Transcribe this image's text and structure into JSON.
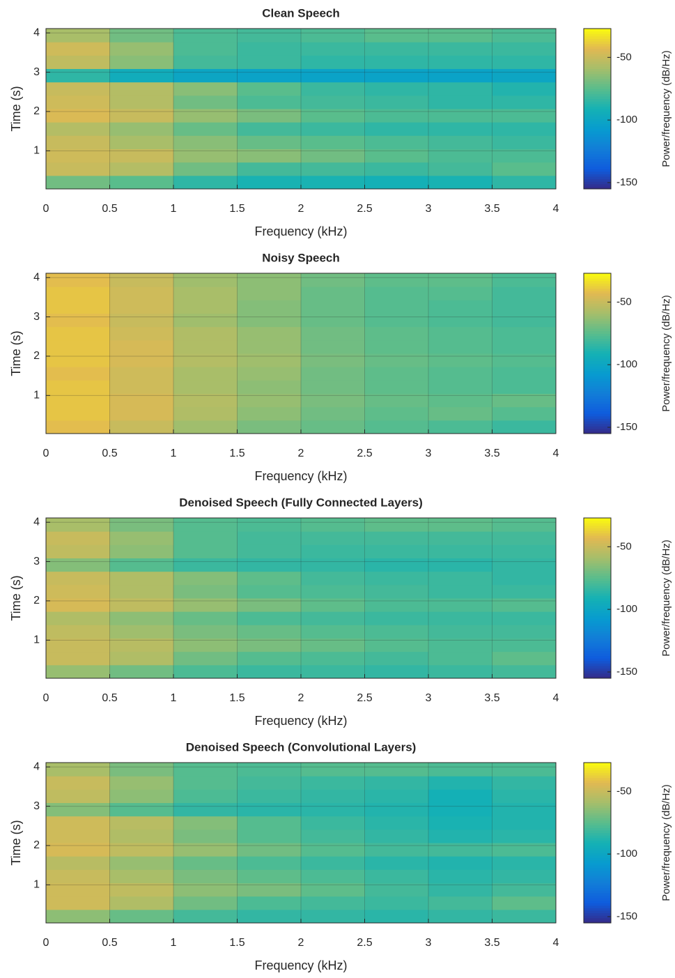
{
  "chart_data": [
    {
      "type": "heatmap",
      "title": "Clean Speech",
      "xlabel": "Frequency (kHz)",
      "ylabel": "Time (s)",
      "colorbar_label": "Power/frequency (dB/Hz)",
      "x": [
        0.25,
        0.75,
        1.25,
        1.75,
        2.25,
        2.75,
        3.25,
        3.75
      ],
      "y": [
        0.2,
        0.54,
        0.88,
        1.22,
        1.56,
        1.9,
        2.24,
        2.58,
        2.92,
        3.26,
        3.6,
        3.94
      ],
      "values": [
        [
          -70,
          -75,
          -85,
          -90,
          -90,
          -92,
          -90,
          -85
        ],
        [
          -50,
          -55,
          -70,
          -80,
          -80,
          -82,
          -80,
          -75
        ],
        [
          -48,
          -50,
          -62,
          -65,
          -70,
          -75,
          -78,
          -78
        ],
        [
          -50,
          -58,
          -65,
          -72,
          -75,
          -78,
          -80,
          -82
        ],
        [
          -55,
          -62,
          -72,
          -80,
          -82,
          -85,
          -85,
          -85
        ],
        [
          -45,
          -50,
          -62,
          -68,
          -75,
          -78,
          -78,
          -78
        ],
        [
          -48,
          -55,
          -70,
          -78,
          -80,
          -82,
          -85,
          -85
        ],
        [
          -50,
          -55,
          -65,
          -75,
          -82,
          -85,
          -85,
          -88
        ],
        [
          -85,
          -95,
          -100,
          -102,
          -102,
          -102,
          -102,
          -100
        ],
        [
          -52,
          -65,
          -80,
          -82,
          -85,
          -85,
          -85,
          -85
        ],
        [
          -48,
          -62,
          -78,
          -82,
          -82,
          -82,
          -82,
          -82
        ],
        [
          -58,
          -70,
          -78,
          -80,
          -78,
          -75,
          -75,
          -78
        ]
      ],
      "xlim": [
        0,
        4
      ],
      "ylim": [
        0.03,
        4.11
      ],
      "xticks": [
        0,
        0.5,
        1,
        1.5,
        2,
        2.5,
        3,
        3.5,
        4
      ],
      "yticks": [
        1,
        2,
        3,
        4
      ],
      "clim": [
        -155,
        -27
      ],
      "cticks": [
        -50,
        -100,
        -150
      ],
      "colormap": "parula",
      "grid": true
    },
    {
      "type": "heatmap",
      "title": "Noisy Speech",
      "xlabel": "Frequency (kHz)",
      "ylabel": "Time (s)",
      "colorbar_label": "Power/frequency (dB/Hz)",
      "x": [
        0.25,
        0.75,
        1.25,
        1.75,
        2.25,
        2.75,
        3.25,
        3.75
      ],
      "y": [
        0.2,
        0.54,
        0.88,
        1.22,
        1.56,
        1.9,
        2.24,
        2.58,
        2.92,
        3.26,
        3.6,
        3.94
      ],
      "values": [
        [
          -42,
          -50,
          -60,
          -68,
          -72,
          -76,
          -78,
          -82
        ],
        [
          -40,
          -46,
          -56,
          -64,
          -70,
          -74,
          -72,
          -76
        ],
        [
          -40,
          -46,
          -55,
          -62,
          -68,
          -72,
          -74,
          -72
        ],
        [
          -40,
          -48,
          -58,
          -64,
          -70,
          -74,
          -76,
          -78
        ],
        [
          -42,
          -48,
          -58,
          -62,
          -70,
          -74,
          -76,
          -78
        ],
        [
          -40,
          -46,
          -55,
          -60,
          -68,
          -72,
          -74,
          -76
        ],
        [
          -40,
          -46,
          -56,
          -62,
          -70,
          -74,
          -76,
          -78
        ],
        [
          -40,
          -48,
          -56,
          -62,
          -70,
          -74,
          -76,
          -78
        ],
        [
          -42,
          -50,
          -60,
          -66,
          -72,
          -76,
          -78,
          -80
        ],
        [
          -40,
          -48,
          -58,
          -66,
          -72,
          -76,
          -78,
          -80
        ],
        [
          -40,
          -48,
          -58,
          -64,
          -72,
          -76,
          -76,
          -80
        ],
        [
          -42,
          -50,
          -60,
          -64,
          -70,
          -74,
          -74,
          -78
        ]
      ],
      "xlim": [
        0,
        4
      ],
      "ylim": [
        0.03,
        4.11
      ],
      "xticks": [
        0,
        0.5,
        1,
        1.5,
        2,
        2.5,
        3,
        3.5,
        4
      ],
      "yticks": [
        1,
        2,
        3,
        4
      ],
      "clim": [
        -155,
        -27
      ],
      "cticks": [
        -50,
        -100,
        -150
      ],
      "colormap": "parula",
      "grid": true
    },
    {
      "type": "heatmap",
      "title": "Denoised Speech (Fully Connected Layers)",
      "xlabel": "Frequency (kHz)",
      "ylabel": "Time (s)",
      "colorbar_label": "Power/frequency (dB/Hz)",
      "x": [
        0.25,
        0.75,
        1.25,
        1.75,
        2.25,
        2.75,
        3.25,
        3.75
      ],
      "y": [
        0.2,
        0.54,
        0.88,
        1.22,
        1.56,
        1.9,
        2.24,
        2.58,
        2.92,
        3.26,
        3.6,
        3.94
      ],
      "values": [
        [
          -62,
          -70,
          -78,
          -82,
          -82,
          -84,
          -82,
          -80
        ],
        [
          -50,
          -56,
          -70,
          -76,
          -78,
          -80,
          -78,
          -74
        ],
        [
          -50,
          -54,
          -64,
          -68,
          -72,
          -76,
          -78,
          -78
        ],
        [
          -52,
          -60,
          -68,
          -72,
          -76,
          -78,
          -80,
          -80
        ],
        [
          -56,
          -64,
          -72,
          -78,
          -80,
          -82,
          -82,
          -82
        ],
        [
          -46,
          -52,
          -62,
          -68,
          -74,
          -78,
          -78,
          -76
        ],
        [
          -48,
          -56,
          -68,
          -76,
          -78,
          -80,
          -82,
          -82
        ],
        [
          -50,
          -56,
          -66,
          -74,
          -80,
          -82,
          -82,
          -84
        ],
        [
          -66,
          -76,
          -82,
          -84,
          -84,
          -86,
          -86,
          -84
        ],
        [
          -52,
          -64,
          -76,
          -80,
          -82,
          -82,
          -82,
          -82
        ],
        [
          -50,
          -62,
          -76,
          -80,
          -80,
          -80,
          -80,
          -80
        ],
        [
          -58,
          -68,
          -76,
          -78,
          -76,
          -74,
          -74,
          -76
        ]
      ],
      "xlim": [
        0,
        4
      ],
      "ylim": [
        0.03,
        4.11
      ],
      "xticks": [
        0,
        0.5,
        1,
        1.5,
        2,
        2.5,
        3,
        3.5,
        4
      ],
      "yticks": [
        1,
        2,
        3,
        4
      ],
      "clim": [
        -155,
        -27
      ],
      "cticks": [
        -50,
        -100,
        -150
      ],
      "colormap": "parula",
      "grid": true
    },
    {
      "type": "heatmap",
      "title": "Denoised Speech (Convolutional Layers)",
      "xlabel": "Frequency (kHz)",
      "ylabel": "Time (s)",
      "colorbar_label": "Power/frequency (dB/Hz)",
      "x": [
        0.25,
        0.75,
        1.25,
        1.75,
        2.25,
        2.75,
        3.25,
        3.75
      ],
      "y": [
        0.2,
        0.54,
        0.88,
        1.22,
        1.56,
        1.9,
        2.24,
        2.58,
        2.92,
        3.26,
        3.6,
        3.94
      ],
      "values": [
        [
          -64,
          -72,
          -80,
          -84,
          -84,
          -86,
          -84,
          -82
        ],
        [
          -48,
          -56,
          -70,
          -78,
          -80,
          -82,
          -80,
          -74
        ],
        [
          -48,
          -52,
          -64,
          -68,
          -74,
          -80,
          -84,
          -80
        ],
        [
          -50,
          -58,
          -68,
          -74,
          -78,
          -82,
          -86,
          -84
        ],
        [
          -54,
          -62,
          -72,
          -78,
          -82,
          -86,
          -88,
          -86
        ],
        [
          -46,
          -52,
          -62,
          -70,
          -76,
          -80,
          -80,
          -78
        ],
        [
          -48,
          -56,
          -68,
          -76,
          -80,
          -84,
          -88,
          -86
        ],
        [
          -48,
          -54,
          -66,
          -76,
          -82,
          -86,
          -90,
          -88
        ],
        [
          -66,
          -76,
          -84,
          -86,
          -86,
          -88,
          -92,
          -88
        ],
        [
          -52,
          -64,
          -78,
          -82,
          -84,
          -86,
          -92,
          -86
        ],
        [
          -50,
          -62,
          -76,
          -80,
          -82,
          -84,
          -88,
          -84
        ],
        [
          -58,
          -68,
          -76,
          -78,
          -76,
          -76,
          -78,
          -78
        ]
      ],
      "xlim": [
        0,
        4
      ],
      "ylim": [
        0.03,
        4.11
      ],
      "xticks": [
        0,
        0.5,
        1,
        1.5,
        2,
        2.5,
        3,
        3.5,
        4
      ],
      "yticks": [
        1,
        2,
        3,
        4
      ],
      "clim": [
        -155,
        -27
      ],
      "cticks": [
        -50,
        -100,
        -150
      ],
      "colormap": "parula",
      "grid": true
    }
  ]
}
